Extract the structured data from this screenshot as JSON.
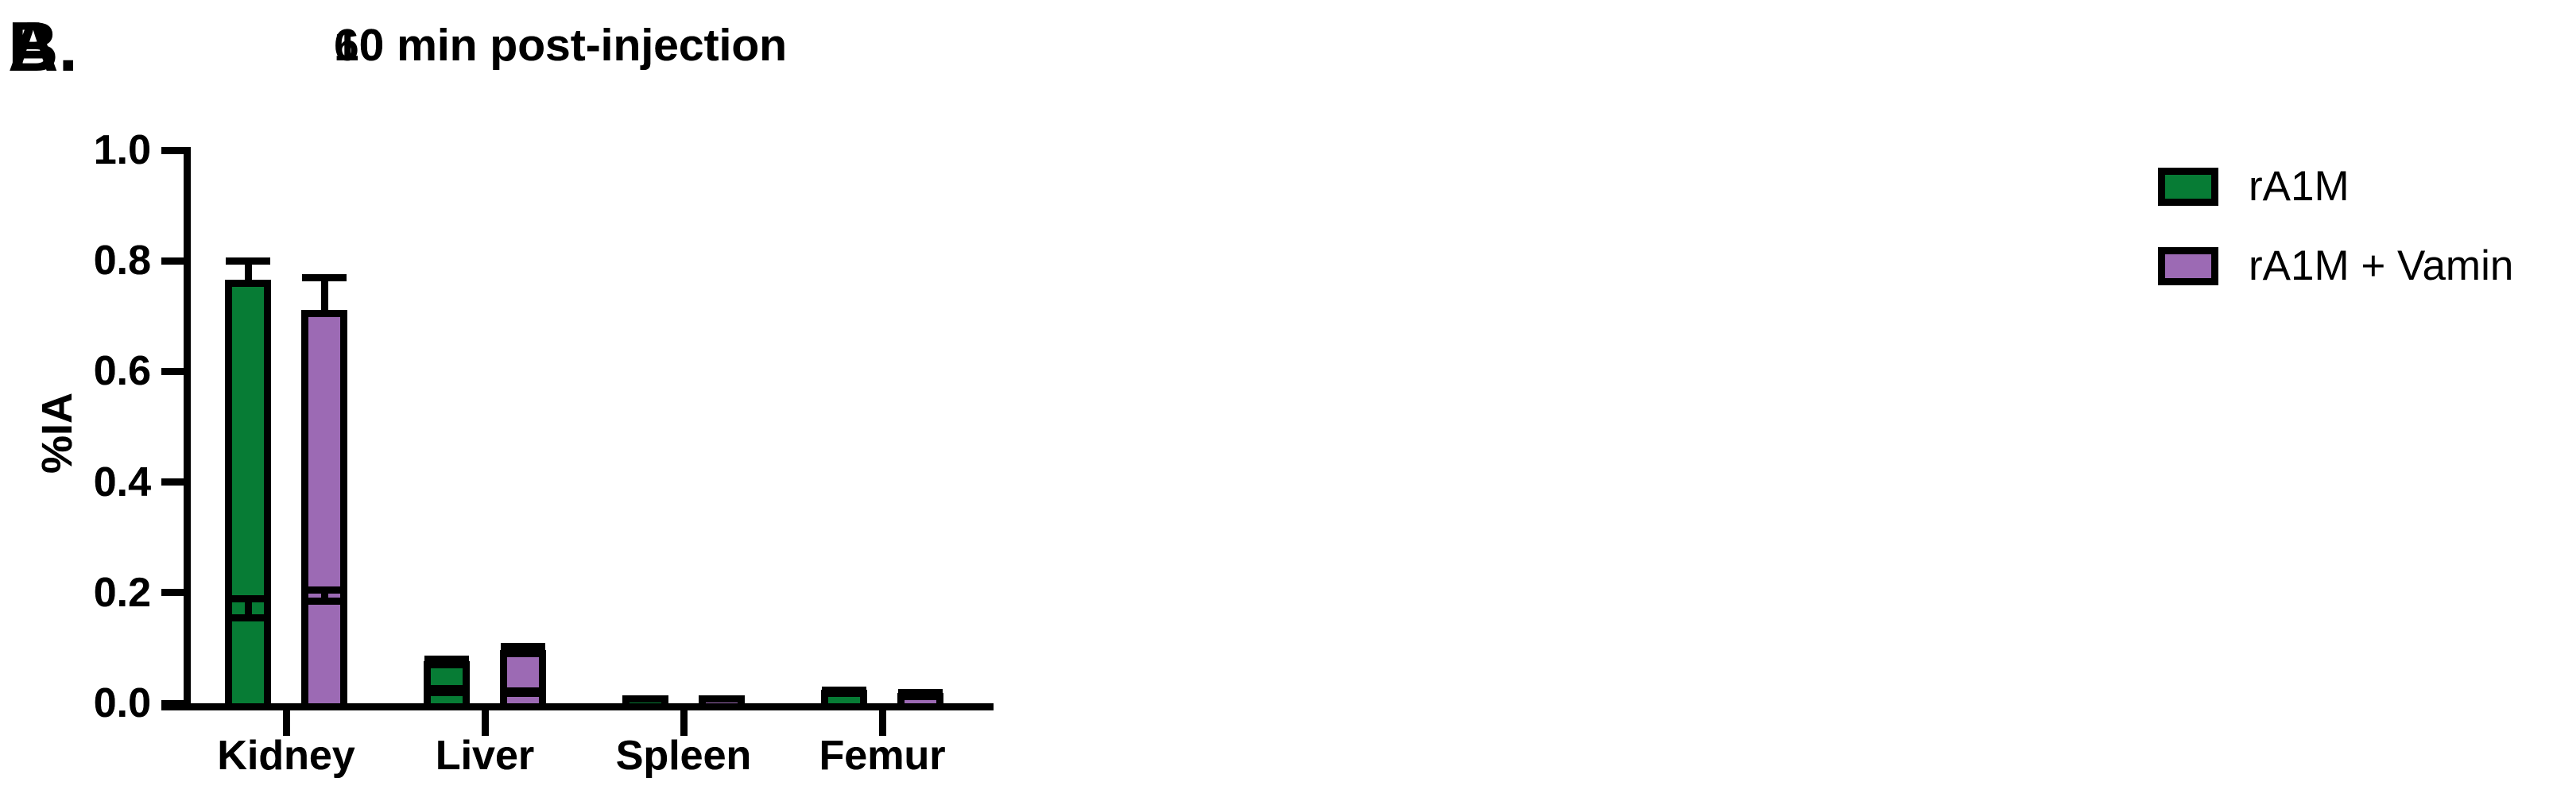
{
  "figure": {
    "background": "#ffffff",
    "axis_color": "#000000",
    "bar_outline_color": "#000000"
  },
  "legend": {
    "position": "top-right",
    "entries": [
      {
        "label": "rA1M",
        "color": "#077c35"
      },
      {
        "label": "rA1M + Vamin",
        "color": "#9c6ab4"
      }
    ]
  },
  "chart_data": [
    {
      "type": "bar",
      "panel_label": "A.",
      "title": "10 min post-injection",
      "ylabel": "%IA",
      "xlabel": "",
      "ylim": [
        0,
        1.0
      ],
      "yticks": [
        0,
        0.2,
        0.4,
        0.6,
        0.8,
        1.0
      ],
      "grid": false,
      "error_bars": "upper",
      "categories": [
        "Kidney",
        "Liver",
        "Spleen",
        "Femur"
      ],
      "series": [
        {
          "name": "rA1M",
          "color": "#077c35",
          "values": [
            0.76,
            0.07,
            0.004,
            0.008
          ],
          "errors": [
            0.04,
            0.01,
            0.002,
            0.003
          ]
        },
        {
          "name": "rA1M + Vamin",
          "color": "#9c6ab4",
          "values": [
            0.705,
            0.09,
            0.004,
            0.008
          ],
          "errors": [
            0.065,
            0.013,
            0.002,
            0.003
          ]
        }
      ]
    },
    {
      "type": "bar",
      "panel_label": "B.",
      "title": "60 min post-injection",
      "ylabel": "%IA",
      "xlabel": "",
      "ylim": [
        0,
        1.0
      ],
      "yticks": [
        0,
        0.2,
        0.4,
        0.6,
        0.8,
        1.0
      ],
      "grid": false,
      "error_bars": "upper",
      "categories": [
        "Kidney",
        "Liver",
        "Spleen",
        "Femur"
      ],
      "series": [
        {
          "name": "rA1M",
          "color": "#077c35",
          "values": [
            0.155,
            0.02,
            0.007,
            0.018
          ],
          "errors": [
            0.035,
            0.007,
            0.002,
            0.006
          ]
        },
        {
          "name": "rA1M + Vamin",
          "color": "#9c6ab4",
          "values": [
            0.185,
            0.018,
            0.006,
            0.013
          ],
          "errors": [
            0.02,
            0.005,
            0.002,
            0.007
          ]
        }
      ]
    }
  ]
}
